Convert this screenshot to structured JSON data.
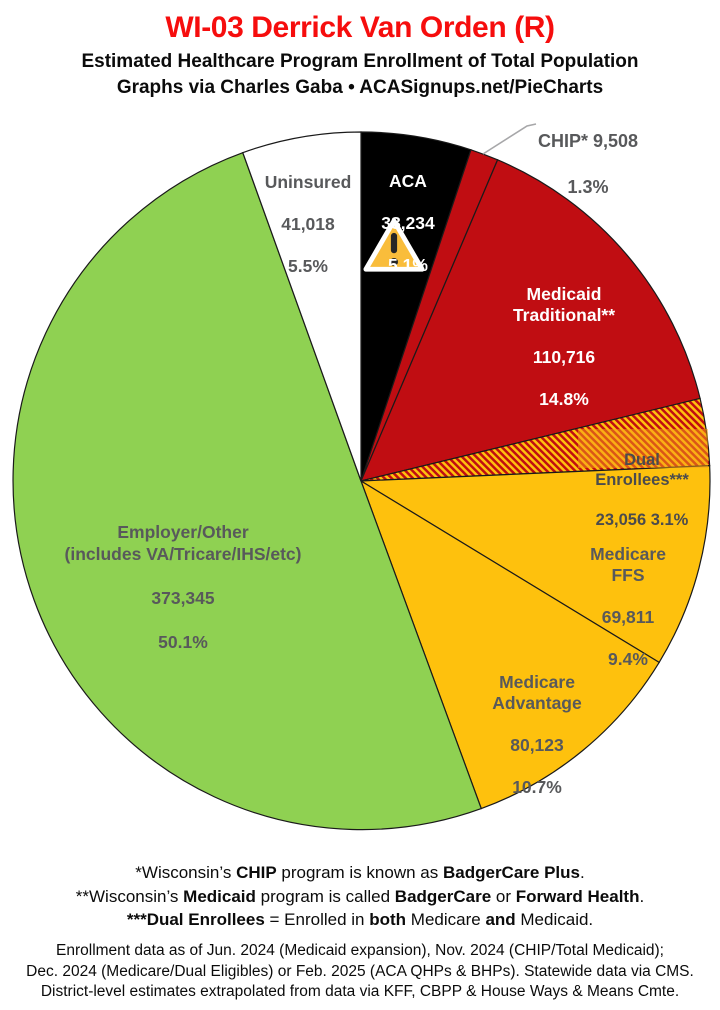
{
  "header": {
    "title": "WI-03 Derrick Van Orden (R)",
    "subtitle": "Estimated Healthcare Program Enrollment of Total Population",
    "credit": "Graphs via Charles Gaba   •   ACASignups.net/PieCharts",
    "title_color": "#F60D0D"
  },
  "chart_data": {
    "type": "pie",
    "title": "Estimated Healthcare Program Enrollment of Total Population",
    "start_angle_deg": 0,
    "direction": "clockwise",
    "stroke_color": "#1A1A1A",
    "slices": [
      {
        "name": "ACA",
        "value": 38234,
        "pct": 5.1,
        "color": "#000000",
        "hatch": false,
        "label_lines": [
          "ACA",
          "38,234",
          "5.1%"
        ]
      },
      {
        "name": "CHIP",
        "value": 9508,
        "pct": 1.3,
        "color": "#C00D12",
        "hatch": false,
        "label_lines": [
          "CHIP* 9,508",
          "1.3%"
        ]
      },
      {
        "name": "Medicaid Traditional",
        "value": 110716,
        "pct": 14.8,
        "color": "#C00D12",
        "hatch": false,
        "label_lines": [
          "Medicaid\nTraditional**",
          "110,716",
          "14.8%"
        ]
      },
      {
        "name": "Dual Enrollees",
        "value": 23056,
        "pct": 3.1,
        "color": "#C00D12",
        "hatch": true,
        "hatch_color": "#FEC10D",
        "label_lines": [
          "Dual Enrollees***",
          "23,056 3.1%"
        ]
      },
      {
        "name": "Medicare FFS",
        "value": 69811,
        "pct": 9.4,
        "color": "#FEC10D",
        "hatch": false,
        "label_lines": [
          "Medicare FFS",
          "69,811",
          "9.4%"
        ]
      },
      {
        "name": "Medicare Advantage",
        "value": 80123,
        "pct": 10.7,
        "color": "#FEC10D",
        "hatch": false,
        "label_lines": [
          "Medicare\nAdvantage",
          "80,123",
          "10.7%"
        ]
      },
      {
        "name": "Employer/Other",
        "value": 373345,
        "pct": 50.1,
        "color": "#8FD152",
        "hatch": false,
        "label_lines": [
          "Employer/Other\n(includes VA/Tricare/IHS/etc)",
          "373,345",
          "50.1%"
        ]
      },
      {
        "name": "Uninsured",
        "value": 41018,
        "pct": 5.5,
        "color": "#FFFFFF",
        "hatch": false,
        "label_lines": [
          "Uninsured",
          "41,018",
          "5.5%"
        ]
      }
    ]
  },
  "icons": {
    "warning": {
      "name": "warning-icon",
      "fill": "#F9BD3B",
      "mark": "#262626"
    }
  },
  "footnotes": [
    [
      {
        "t": "*Wisconsin’s ",
        "b": 0
      },
      {
        "t": "CHIP",
        "b": 1
      },
      {
        "t": " program is known as ",
        "b": 0
      },
      {
        "t": "BadgerCare Plus",
        "b": 1
      },
      {
        "t": ".",
        "b": 0
      }
    ],
    [
      {
        "t": "**Wisconsin’s ",
        "b": 0
      },
      {
        "t": "Medicaid",
        "b": 1
      },
      {
        "t": " program is called ",
        "b": 0
      },
      {
        "t": "BadgerCare",
        "b": 1
      },
      {
        "t": " or ",
        "b": 0
      },
      {
        "t": "Forward Health",
        "b": 1
      },
      {
        "t": ".",
        "b": 0
      }
    ],
    [
      {
        "t": "***Dual Enrollees",
        "b": 1
      },
      {
        "t": " = Enrolled in ",
        "b": 0
      },
      {
        "t": "both",
        "b": 1
      },
      {
        "t": " Medicare ",
        "b": 0
      },
      {
        "t": "and",
        "b": 1
      },
      {
        "t": " Medicaid.",
        "b": 0
      }
    ]
  ],
  "source_lines": [
    "Enrollment data as of Jun. 2024 (Medicaid expansion), Nov. 2024 (CHIP/Total Medicaid);",
    "Dec. 2024 (Medicare/Dual Eligibles) or Feb. 2025 (ACA QHPs & BHPs). Statewide data via CMS.",
    "District-level estimates extrapolated from data via KFF, CBPP & House Ways & Means Cmte."
  ]
}
